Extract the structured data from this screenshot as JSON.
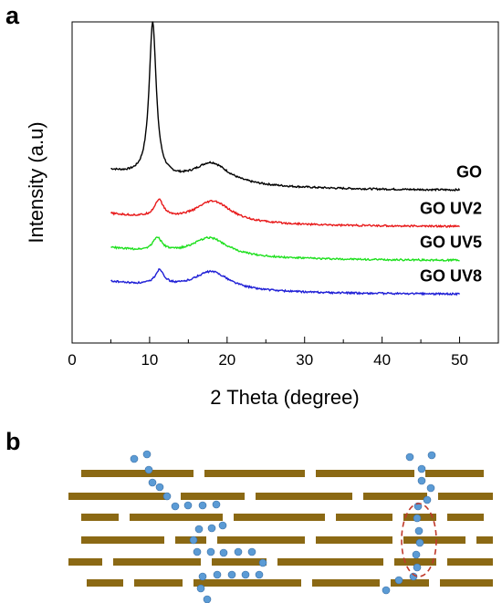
{
  "panels": {
    "a": "a",
    "b": "b"
  },
  "chart_data": {
    "type": "line",
    "title": "",
    "xlabel": "2 Theta (degree)",
    "ylabel": "Intensity (a.u)",
    "xlim": [
      0,
      55
    ],
    "x_ticks": [
      0,
      10,
      20,
      30,
      40,
      50
    ],
    "y_ticks": [],
    "grid": false,
    "legend": "none; series names printed beside each trace",
    "series": [
      {
        "name": "GO",
        "color": "#000000",
        "baseline": 0.8,
        "peaks": [
          {
            "x": 10.4,
            "height": 4.34,
            "width": 0.55
          },
          {
            "x": 18,
            "height": 0.58,
            "width": 2.7
          }
        ],
        "background": 0.55
      },
      {
        "name": "GO UV2",
        "color": "#e8191a",
        "baseline": -0.22,
        "peaks": [
          {
            "x": 11.2,
            "height": 0.48,
            "width": 0.7
          },
          {
            "x": 18.2,
            "height": 0.6,
            "width": 2.8
          }
        ],
        "background": 0.35
      },
      {
        "name": "GO UV5",
        "color": "#1fe01f",
        "baseline": -1.17,
        "peaks": [
          {
            "x": 11.0,
            "height": 0.38,
            "width": 0.7
          },
          {
            "x": 17.8,
            "height": 0.52,
            "width": 2.8
          }
        ],
        "background": 0.35
      },
      {
        "name": "GO UV8",
        "color": "#1f1fd6",
        "baseline": -2.12,
        "peaks": [
          {
            "x": 11.3,
            "height": 0.42,
            "width": 0.7
          },
          {
            "x": 18.0,
            "height": 0.52,
            "width": 2.8
          }
        ],
        "background": 0.35
      }
    ]
  },
  "schematic": {
    "layer_color": "#8b6914",
    "molecule_color": "#5b9bd5",
    "highlight_color": "#c0392b"
  }
}
